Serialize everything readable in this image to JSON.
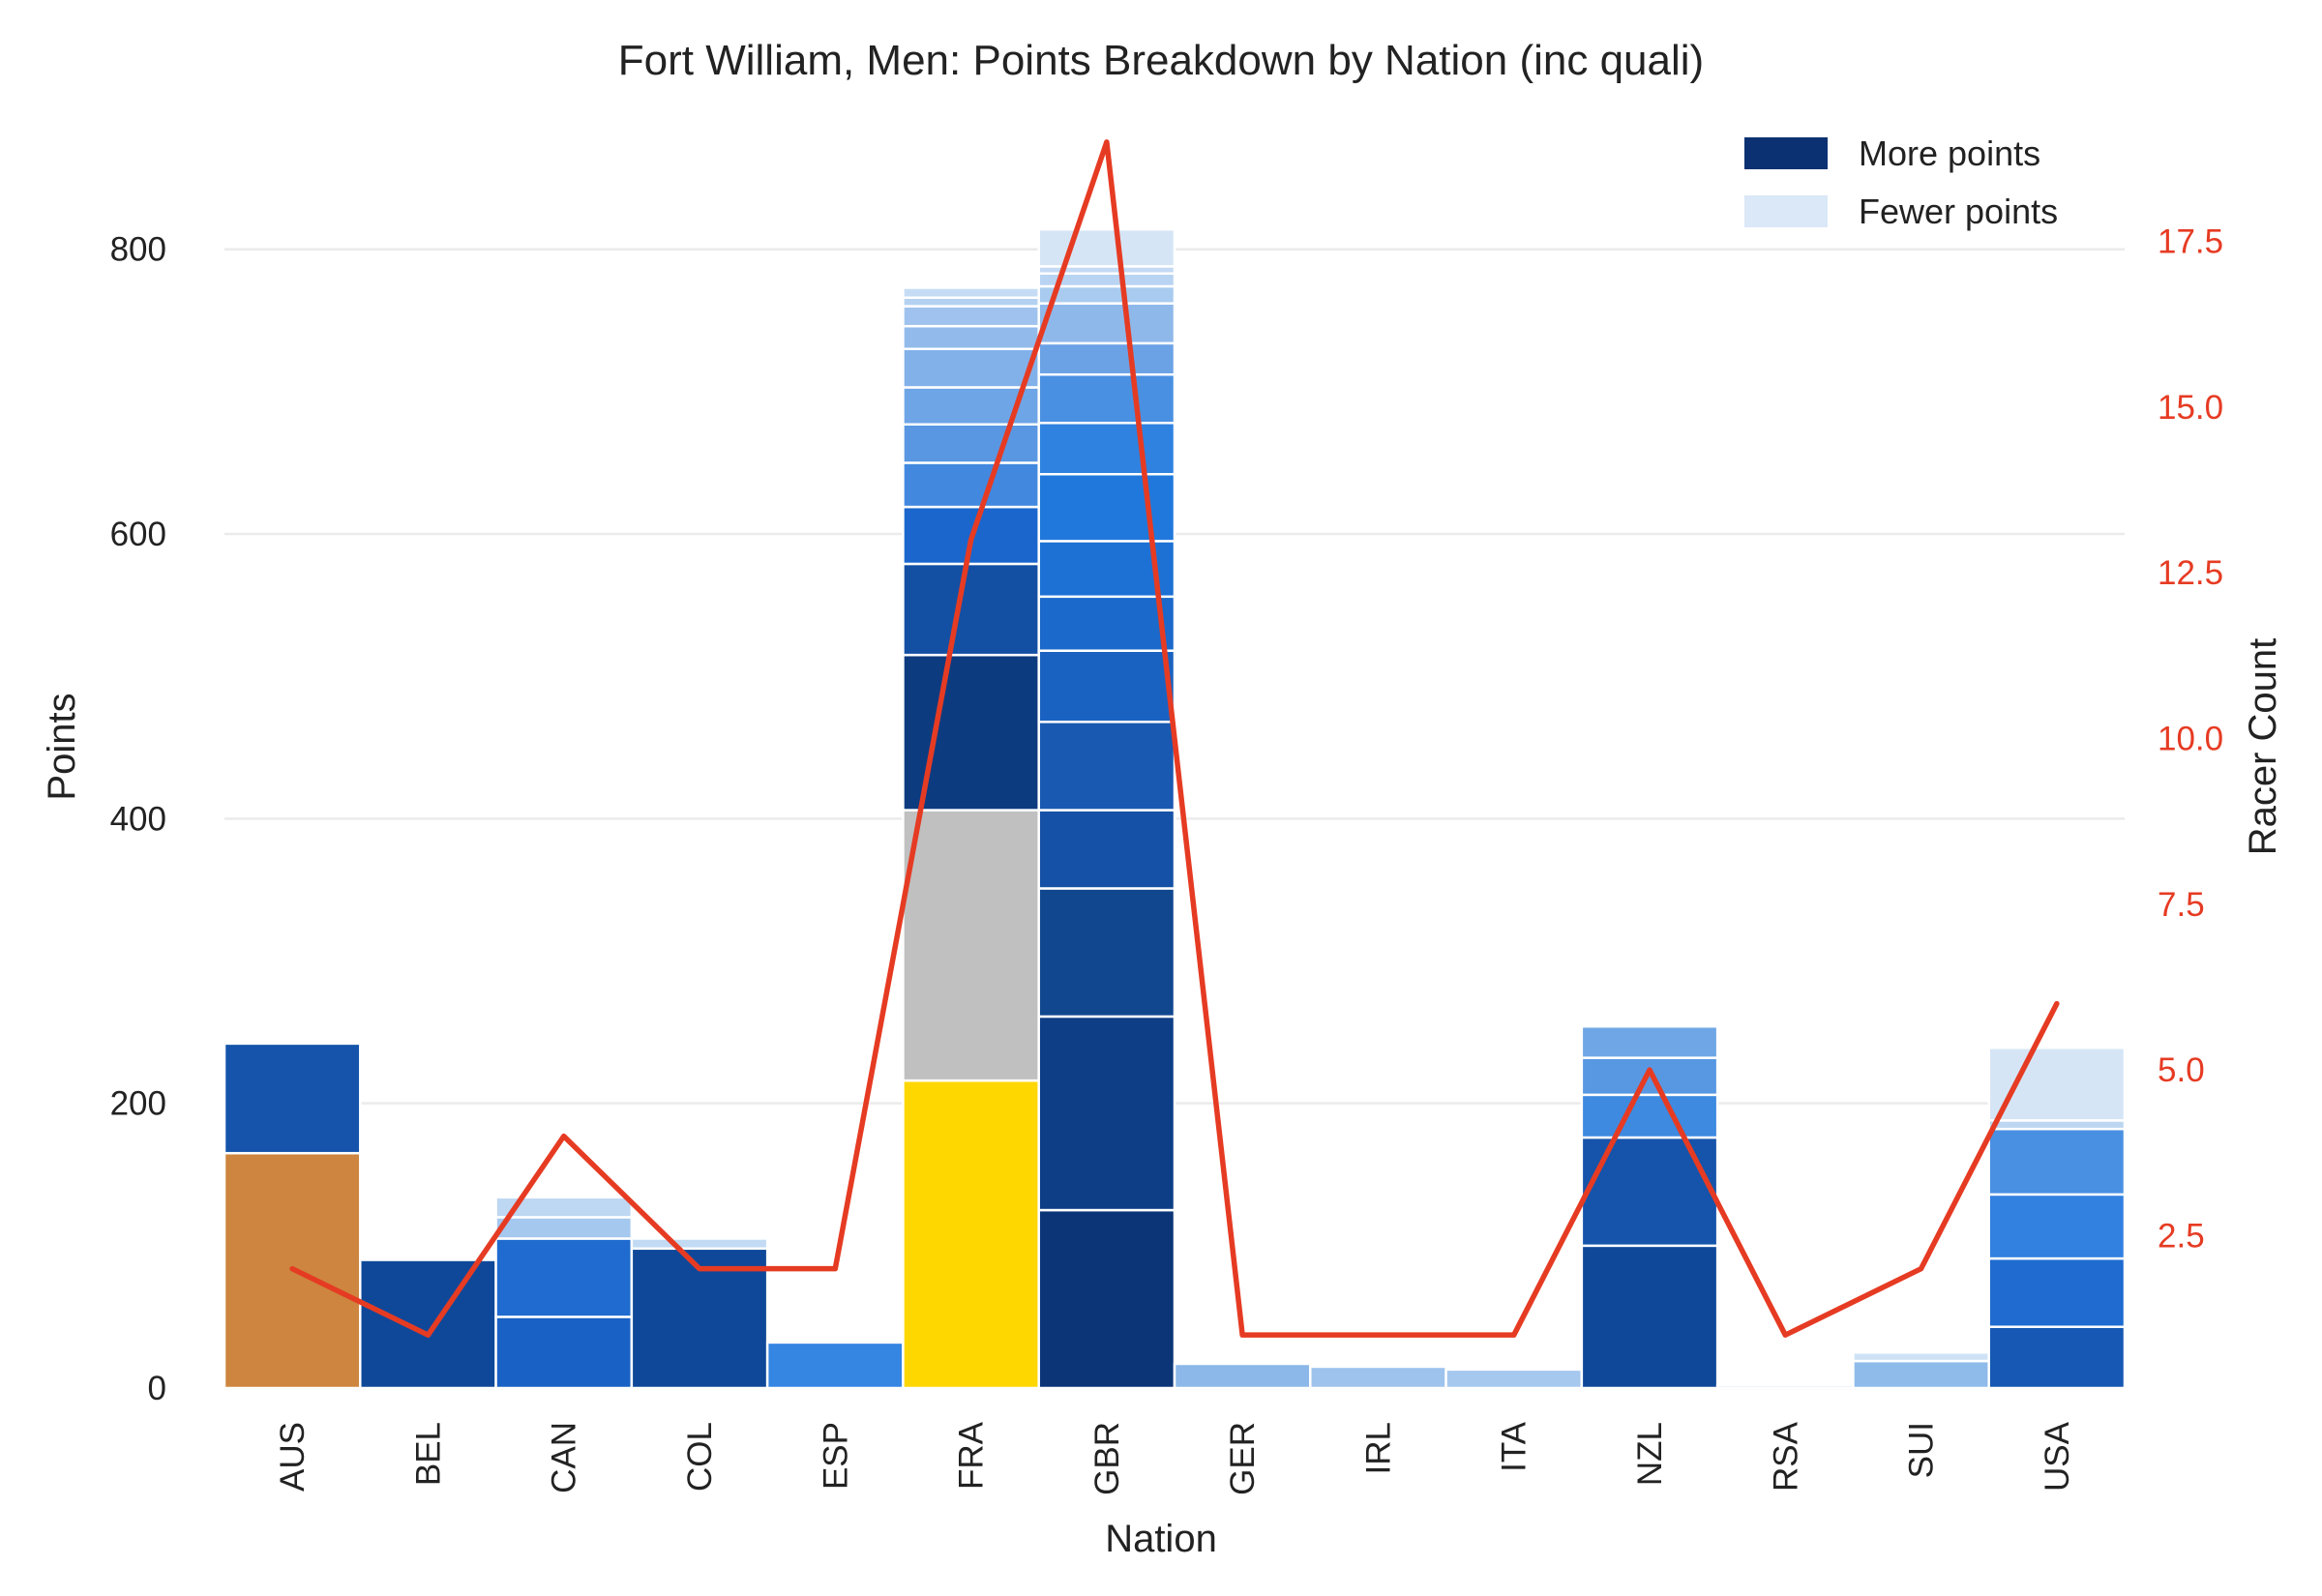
{
  "chart_data": {
    "type": "bar",
    "title": "Fort William, Men: Points Breakdown by Nation (inc quali)",
    "xlabel": "Nation",
    "ylabel": "Points",
    "y2label": "Racer Count",
    "ylim": [
      0,
      880
    ],
    "y2lim": [
      0.2,
      19.1
    ],
    "yticks": [
      0,
      200,
      400,
      600,
      800
    ],
    "y2ticks": [
      2.5,
      5.0,
      7.5,
      10.0,
      12.5,
      15.0,
      17.5
    ],
    "y2tick_labels": [
      "2.5",
      "5.0",
      "7.5",
      "10.0",
      "12.5",
      "15.0",
      "17.5"
    ],
    "grid": true,
    "legend_position": "top-right",
    "legend": [
      {
        "label": "More points",
        "color": "#0b3172"
      },
      {
        "label": "Fewer points",
        "color": "#dae8f7"
      }
    ],
    "line_color": "#e63b23",
    "categories": [
      "AUS",
      "BEL",
      "CAN",
      "COL",
      "ESP",
      "FRA",
      "GBR",
      "GER",
      "IRL",
      "ITA",
      "NZL",
      "RSA",
      "SUI",
      "USA"
    ],
    "stacks": [
      [
        {
          "value": 165,
          "color": "#cd853f"
        },
        {
          "value": 77,
          "color": "#1554aa"
        }
      ],
      [
        {
          "value": 90,
          "color": "#0f4899"
        }
      ],
      [
        {
          "value": 50,
          "color": "#1961c4"
        },
        {
          "value": 55,
          "color": "#1f6bcf"
        },
        {
          "value": 15,
          "color": "#a5c8ee"
        },
        {
          "value": 14,
          "color": "#bed7f2"
        }
      ],
      [
        {
          "value": 98,
          "color": "#0f4899"
        },
        {
          "value": 7,
          "color": "#c2daf3"
        }
      ],
      [
        {
          "value": 32,
          "color": "#3585e2"
        }
      ],
      [
        {
          "value": 216,
          "color": "#ffd700"
        },
        {
          "value": 190,
          "color": "#c0c0c0"
        },
        {
          "value": 109,
          "color": "#0d3b80"
        },
        {
          "value": 64,
          "color": "#1350a3"
        },
        {
          "value": 40,
          "color": "#1a66cc"
        },
        {
          "value": 31,
          "color": "#4288df"
        },
        {
          "value": 27,
          "color": "#5a97e2"
        },
        {
          "value": 26,
          "color": "#6ea5e6"
        },
        {
          "value": 27,
          "color": "#82b1e9"
        },
        {
          "value": 16,
          "color": "#92bbec"
        },
        {
          "value": 14,
          "color": "#9fc3ee"
        },
        {
          "value": 6,
          "color": "#b4d1f2"
        },
        {
          "value": 7,
          "color": "#c6dcf5"
        }
      ],
      [
        {
          "value": 125,
          "color": "#0b3577"
        },
        {
          "value": 136,
          "color": "#0d3e86"
        },
        {
          "value": 90,
          "color": "#11478f"
        },
        {
          "value": 55,
          "color": "#1551a6"
        },
        {
          "value": 62,
          "color": "#1959b2"
        },
        {
          "value": 50,
          "color": "#1a62c1"
        },
        {
          "value": 38,
          "color": "#1b69ca"
        },
        {
          "value": 39,
          "color": "#1d71d4"
        },
        {
          "value": 47,
          "color": "#2078dc"
        },
        {
          "value": 36,
          "color": "#2f82e0"
        },
        {
          "value": 34,
          "color": "#4a90e2"
        },
        {
          "value": 22,
          "color": "#6ba2e6"
        },
        {
          "value": 28,
          "color": "#8fb8ea"
        },
        {
          "value": 12,
          "color": "#a9cbef"
        },
        {
          "value": 9,
          "color": "#b9d4f2"
        },
        {
          "value": 5,
          "color": "#c4daf4"
        },
        {
          "value": 26,
          "color": "#d6e5f6"
        }
      ],
      [
        {
          "value": 17,
          "color": "#8cb8e9"
        }
      ],
      [
        {
          "value": 15,
          "color": "#9ec3ed"
        }
      ],
      [
        {
          "value": 13,
          "color": "#a6c8ee"
        }
      ],
      [
        {
          "value": 100,
          "color": "#0f4899"
        },
        {
          "value": 76,
          "color": "#1554aa"
        },
        {
          "value": 30,
          "color": "#3d8ae0"
        },
        {
          "value": 26,
          "color": "#5898e2"
        },
        {
          "value": 22,
          "color": "#6fa7e6"
        }
      ],
      [
        {
          "value": 2,
          "color": "#d5e5f6"
        }
      ],
      [
        {
          "value": 19,
          "color": "#8fbbeb"
        },
        {
          "value": 6,
          "color": "#cfe2f5"
        }
      ],
      [
        {
          "value": 43,
          "color": "#1658b3"
        },
        {
          "value": 48,
          "color": "#1f6bcf"
        },
        {
          "value": 45,
          "color": "#3280e0"
        },
        {
          "value": 46,
          "color": "#4a90e2"
        },
        {
          "value": 6,
          "color": "#bdd6f2"
        },
        {
          "value": 51,
          "color": "#d6e5f6"
        }
      ]
    ],
    "racer_count": [
      2,
      1,
      4,
      2,
      2,
      13,
      19,
      1,
      1,
      1,
      5,
      1,
      2,
      6
    ]
  }
}
